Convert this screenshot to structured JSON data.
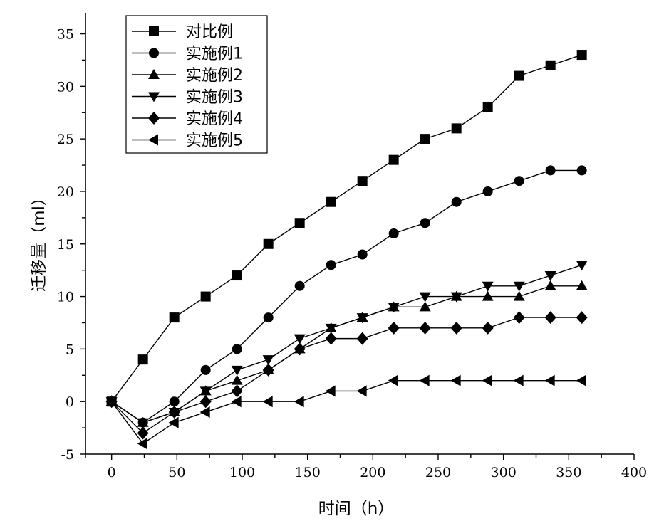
{
  "chart_data": {
    "type": "line",
    "xlabel": "时间（h）",
    "ylabel": "迁移量（ml）",
    "xlim": [
      -20,
      400
    ],
    "ylim": [
      -5,
      37
    ],
    "xticks": [
      0,
      50,
      100,
      150,
      200,
      250,
      300,
      350,
      400
    ],
    "yticks": [
      -5,
      0,
      5,
      10,
      15,
      20,
      25,
      30,
      35
    ],
    "legend_position": "top-left",
    "x": [
      0,
      24,
      48,
      72,
      96,
      120,
      144,
      168,
      192,
      216,
      240,
      264,
      288,
      312,
      336,
      360
    ],
    "series": [
      {
        "name": "对比例",
        "marker": "square",
        "values": [
          0,
          4,
          8,
          10,
          12,
          15,
          17,
          19,
          21,
          23,
          25,
          26,
          28,
          31,
          32,
          33
        ]
      },
      {
        "name": "实施例1",
        "marker": "circle",
        "values": [
          0,
          -2,
          0,
          3,
          5,
          8,
          11,
          13,
          14,
          16,
          17,
          19,
          20,
          21,
          22,
          22
        ]
      },
      {
        "name": "实施例2",
        "marker": "triangle-up",
        "values": [
          0,
          -2,
          -1,
          1,
          2,
          3,
          5,
          7,
          8,
          9,
          9,
          10,
          10,
          10,
          11,
          11
        ]
      },
      {
        "name": "实施例3",
        "marker": "triangle-down",
        "values": [
          0,
          -2,
          -1,
          1,
          3,
          4,
          6,
          7,
          8,
          9,
          10,
          10,
          11,
          11,
          12,
          13
        ]
      },
      {
        "name": "实施例4",
        "marker": "diamond",
        "values": [
          0,
          -3,
          -1,
          0,
          1,
          3,
          5,
          6,
          6,
          7,
          7,
          7,
          7,
          8,
          8,
          8
        ]
      },
      {
        "name": "实施例5",
        "marker": "triangle-left",
        "values": [
          0,
          -4,
          -2,
          -1,
          0,
          0,
          0,
          1,
          1,
          2,
          2,
          2,
          2,
          2,
          2,
          2
        ]
      }
    ]
  }
}
